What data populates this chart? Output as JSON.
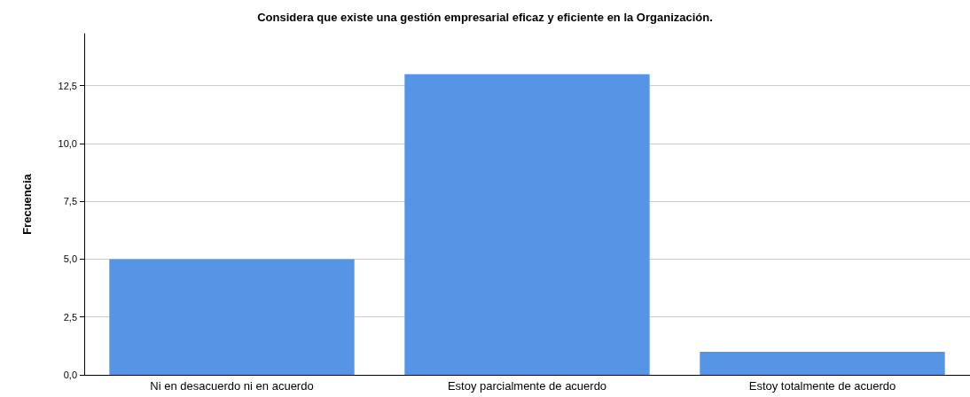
{
  "chart_data": {
    "type": "bar",
    "title": "Considera que existe una gestión empresarial eficaz y eficiente en la Organización.",
    "ylabel": "Frecuencia",
    "categories": [
      "Ni en desacuerdo ni en acuerdo",
      "Estoy parcialmente de acuerdo",
      "Estoy totalmente de acuerdo"
    ],
    "values": [
      5,
      13,
      1
    ],
    "color": "#5694e5",
    "ylim": [
      0,
      14.75
    ],
    "yticks": [
      {
        "value": 0,
        "label": "0,0"
      },
      {
        "value": 2.5,
        "label": "2,5"
      },
      {
        "value": 5,
        "label": "5,0"
      },
      {
        "value": 7.5,
        "label": "7,5"
      },
      {
        "value": 10,
        "label": "10,0"
      },
      {
        "value": 12.5,
        "label": "12,5"
      }
    ],
    "grid": "y"
  }
}
